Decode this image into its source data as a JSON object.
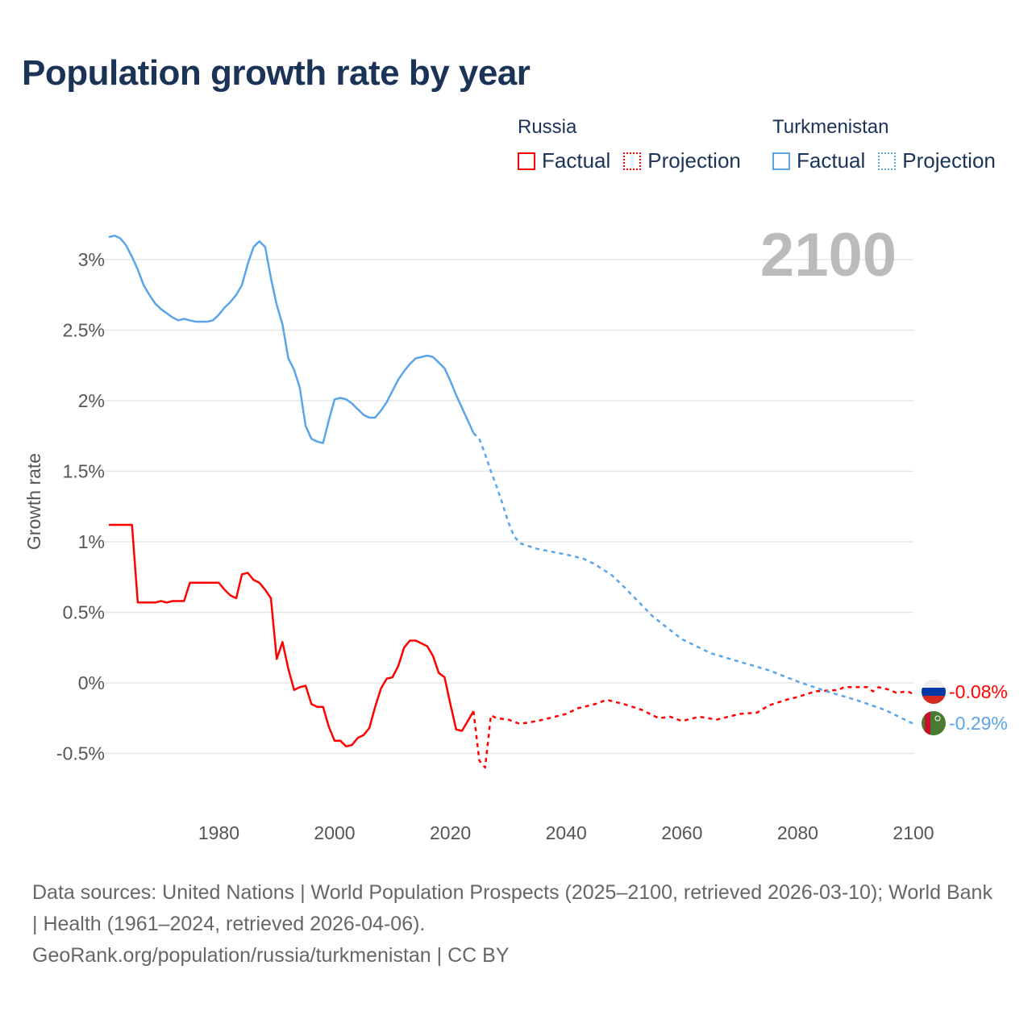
{
  "title": "Population growth rate by year",
  "legend": {
    "groups": [
      {
        "name": "Russia",
        "factual": "Factual",
        "projection": "Projection",
        "color": "#ff0000"
      },
      {
        "name": "Turkmenistan",
        "factual": "Factual",
        "projection": "Projection",
        "color": "#5aa5ea"
      }
    ]
  },
  "year_label": "2100",
  "end_labels": {
    "russia": "-0.08%",
    "turkmenistan": "-0.29%"
  },
  "footer": {
    "sources": "Data sources: United Nations | World Population Prospects (2025–2100, retrieved 2026-03-10); World Bank | Health (1961–2024, retrieved 2026-04-06).",
    "credit": "GeoRank.org/population/russia/turkmenistan | CC BY"
  },
  "chart_data": {
    "type": "line",
    "title": "Population growth rate by year",
    "xlabel": "",
    "ylabel": "Growth rate",
    "xlim": [
      1961,
      2100
    ],
    "ylim": [
      -0.8,
      3.2
    ],
    "x_ticks": [
      1980,
      2000,
      2020,
      2040,
      2060,
      2080,
      2100
    ],
    "y_ticks": [
      -0.5,
      0,
      0.5,
      1,
      1.5,
      2,
      2.5,
      3
    ],
    "y_tick_labels": [
      "-0.5%",
      "0%",
      "0.5%",
      "1%",
      "1.5%",
      "2%",
      "2.5%",
      "3%"
    ],
    "grid": true,
    "legend_position": "top-right",
    "series": [
      {
        "name": "Russia Factual",
        "color": "#ff0000",
        "dashed": false,
        "x": [
          1961,
          1962,
          1963,
          1964,
          1965,
          1966,
          1967,
          1968,
          1969,
          1970,
          1971,
          1972,
          1973,
          1974,
          1975,
          1976,
          1977,
          1978,
          1979,
          1980,
          1981,
          1982,
          1983,
          1984,
          1985,
          1986,
          1987,
          1988,
          1989,
          1990,
          1991,
          1992,
          1993,
          1994,
          1995,
          1996,
          1997,
          1998,
          1999,
          2000,
          2001,
          2002,
          2003,
          2004,
          2005,
          2006,
          2007,
          2008,
          2009,
          2010,
          2011,
          2012,
          2013,
          2014,
          2015,
          2016,
          2017,
          2018,
          2019,
          2020,
          2021,
          2022,
          2023,
          2024
        ],
        "y": [
          1.12,
          1.12,
          1.12,
          1.12,
          1.12,
          0.57,
          0.57,
          0.57,
          0.57,
          0.58,
          0.57,
          0.58,
          0.58,
          0.58,
          0.71,
          0.71,
          0.71,
          0.71,
          0.71,
          0.71,
          0.66,
          0.62,
          0.6,
          0.77,
          0.78,
          0.73,
          0.71,
          0.66,
          0.6,
          0.17,
          0.29,
          0.1,
          -0.05,
          -0.03,
          -0.02,
          -0.15,
          -0.17,
          -0.17,
          -0.31,
          -0.41,
          -0.41,
          -0.45,
          -0.44,
          -0.39,
          -0.37,
          -0.32,
          -0.17,
          -0.04,
          0.03,
          0.04,
          0.12,
          0.25,
          0.3,
          0.3,
          0.28,
          0.26,
          0.19,
          0.07,
          0.04,
          -0.15,
          -0.33,
          -0.34,
          -0.27,
          -0.2
        ]
      },
      {
        "name": "Russia Projection",
        "color": "#ff0000",
        "dashed": true,
        "x": [
          2024,
          2025,
          2026,
          2027,
          2028,
          2030,
          2032,
          2035,
          2040,
          2042,
          2045,
          2047,
          2050,
          2053,
          2056,
          2058,
          2060,
          2063,
          2066,
          2070,
          2073,
          2075,
          2078,
          2080,
          2083,
          2087,
          2088,
          2092,
          2093,
          2094,
          2096,
          2097,
          2099,
          2100
        ],
        "y": [
          -0.2,
          -0.55,
          -0.6,
          -0.23,
          -0.25,
          -0.26,
          -0.29,
          -0.27,
          -0.22,
          -0.18,
          -0.15,
          -0.12,
          -0.15,
          -0.19,
          -0.25,
          -0.24,
          -0.27,
          -0.24,
          -0.26,
          -0.22,
          -0.21,
          -0.16,
          -0.12,
          -0.1,
          -0.06,
          -0.05,
          -0.03,
          -0.03,
          -0.06,
          -0.03,
          -0.05,
          -0.07,
          -0.06,
          -0.08
        ]
      },
      {
        "name": "Turkmenistan Factual",
        "color": "#5aa5ea",
        "dashed": false,
        "x": [
          1961,
          1962,
          1963,
          1964,
          1965,
          1966,
          1967,
          1968,
          1969,
          1970,
          1971,
          1972,
          1973,
          1974,
          1975,
          1976,
          1977,
          1978,
          1979,
          1980,
          1981,
          1982,
          1983,
          1984,
          1985,
          1986,
          1987,
          1988,
          1989,
          1990,
          1991,
          1992,
          1993,
          1994,
          1995,
          1996,
          1997,
          1998,
          1999,
          2000,
          2001,
          2002,
          2003,
          2004,
          2005,
          2006,
          2007,
          2008,
          2009,
          2010,
          2011,
          2012,
          2013,
          2014,
          2015,
          2016,
          2017,
          2018,
          2019,
          2020,
          2021,
          2022,
          2023,
          2024
        ],
        "y": [
          3.16,
          3.17,
          3.15,
          3.1,
          3.02,
          2.93,
          2.82,
          2.75,
          2.69,
          2.65,
          2.62,
          2.59,
          2.57,
          2.58,
          2.57,
          2.56,
          2.56,
          2.56,
          2.57,
          2.61,
          2.66,
          2.7,
          2.75,
          2.82,
          2.97,
          3.09,
          3.13,
          3.09,
          2.87,
          2.68,
          2.54,
          2.3,
          2.22,
          2.09,
          1.82,
          1.73,
          1.71,
          1.7,
          1.86,
          2.01,
          2.02,
          2.01,
          1.98,
          1.94,
          1.9,
          1.88,
          1.88,
          1.93,
          1.99,
          2.07,
          2.15,
          2.21,
          2.26,
          2.3,
          2.31,
          2.32,
          2.31,
          2.27,
          2.23,
          2.14,
          2.04,
          1.95,
          1.86,
          1.77
        ]
      },
      {
        "name": "Turkmenistan Projection",
        "color": "#5aa5ea",
        "dashed": true,
        "x": [
          2024,
          2025,
          2026,
          2027,
          2028,
          2029,
          2030,
          2031,
          2032,
          2035,
          2040,
          2043,
          2045,
          2048,
          2050,
          2055,
          2060,
          2065,
          2070,
          2075,
          2080,
          2085,
          2090,
          2095,
          2100
        ],
        "y": [
          1.77,
          1.73,
          1.62,
          1.5,
          1.39,
          1.27,
          1.14,
          1.04,
          0.99,
          0.95,
          0.91,
          0.88,
          0.84,
          0.76,
          0.68,
          0.47,
          0.31,
          0.21,
          0.15,
          0.09,
          0.01,
          -0.06,
          -0.12,
          -0.19,
          -0.29
        ]
      }
    ]
  }
}
